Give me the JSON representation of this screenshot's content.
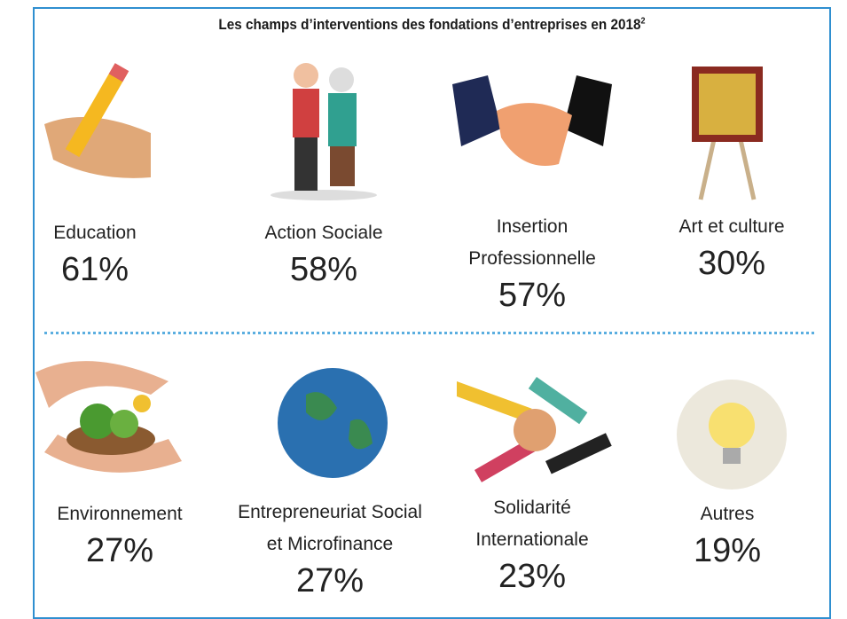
{
  "title": "Les champs d’interventions des fondations d’entreprises en 2018",
  "title_note": "2",
  "items": [
    {
      "label_lines": [
        "Education"
      ],
      "value": "61%"
    },
    {
      "label_lines": [
        "Action Sociale"
      ],
      "value": "58%"
    },
    {
      "label_lines": [
        "Insertion",
        "Professionnelle"
      ],
      "value": "57%"
    },
    {
      "label_lines": [
        "Art et culture"
      ],
      "value": "30%"
    },
    {
      "label_lines": [
        "Environnement"
      ],
      "value": "27%"
    },
    {
      "label_lines": [
        "Entrepreneuriat Social",
        "et Microfinance"
      ],
      "value": "27%"
    },
    {
      "label_lines": [
        "Solidarité",
        "Internationale"
      ],
      "value": "23%"
    },
    {
      "label_lines": [
        "Autres"
      ],
      "value": "19%"
    }
  ]
}
